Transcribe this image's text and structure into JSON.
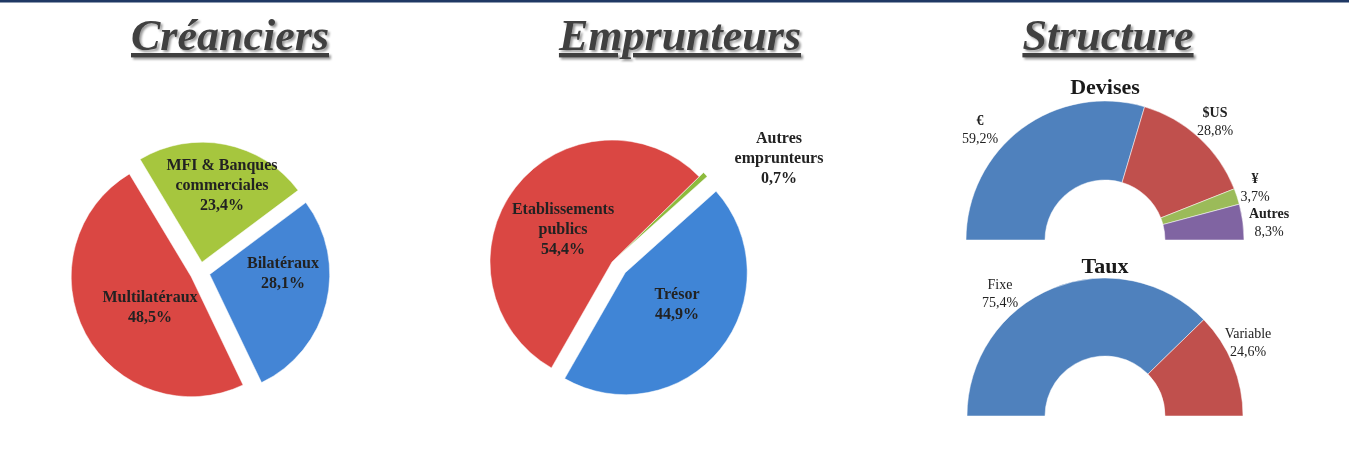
{
  "chart_data": [
    {
      "type": "pie",
      "title": "Créanciers",
      "categories": [
        "MFI & Banques commerciales",
        "Bilatéraux",
        "Multilatéraux"
      ],
      "values": [
        23.4,
        28.1,
        48.5
      ],
      "value_labels": [
        "23,4%",
        "28,1%",
        "48,5%"
      ],
      "colors": [
        "#a6c63e",
        "#4485d5",
        "#da4743"
      ]
    },
    {
      "type": "pie",
      "title": "Emprunteurs",
      "categories": [
        "Autres emprunteurs",
        "Trésor",
        "Etablissements publics"
      ],
      "values": [
        0.7,
        44.9,
        54.4
      ],
      "value_labels": [
        "0,7%",
        "44,9%",
        "54,4%"
      ],
      "colors": [
        "#8dbb3d",
        "#4085d6",
        "#da4743"
      ]
    },
    {
      "type": "donut",
      "title": "Structure",
      "subtitle": "Devises",
      "categories": [
        "€",
        "$US",
        "¥",
        "Autres"
      ],
      "values": [
        59.2,
        28.8,
        3.7,
        8.3
      ],
      "value_labels": [
        "59,2%",
        "28,8%",
        "3,7%",
        "8,3%"
      ],
      "colors": [
        "#4f81bd",
        "#c0504d",
        "#9bbb59",
        "#8064a2"
      ]
    },
    {
      "type": "donut",
      "title": "Taux",
      "categories": [
        "Fixe",
        "Variable"
      ],
      "values": [
        75.4,
        24.6
      ],
      "value_labels": [
        "75,4%",
        "24,6%"
      ],
      "colors": [
        "#4f81bd",
        "#c0504d"
      ]
    }
  ]
}
